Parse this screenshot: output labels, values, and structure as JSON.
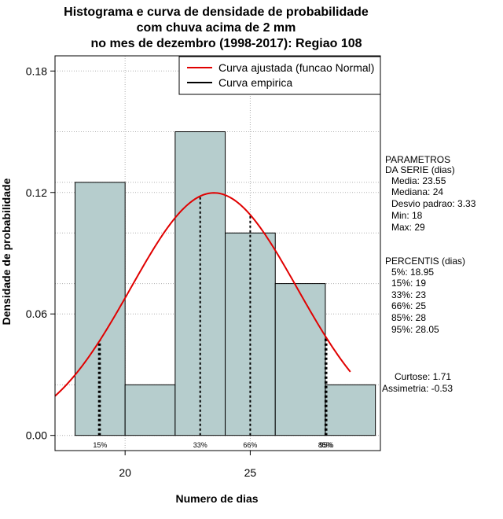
{
  "chart_data": {
    "type": "bar",
    "title_lines": [
      "Histograma e curva de densidade de probabilidade",
      "com chuva acima de 2 mm",
      "no mes de dezembro (1998-2017): Regiao 108"
    ],
    "xlabel": "Numero de dias",
    "ylabel": "Densidade de probabilidade",
    "xlim": [
      17.2,
      30.2
    ],
    "ylim": [
      -0.0075,
      0.1875
    ],
    "x_ticks": [
      20,
      25
    ],
    "y_ticks": [
      0.0,
      0.06,
      0.12,
      0.18
    ],
    "y_tick_labels": [
      "0.00",
      "0.06",
      "0.12",
      "0.18"
    ],
    "grid": true,
    "bins": [
      {
        "x0": 18,
        "x1": 20,
        "density": 0.125
      },
      {
        "x0": 20,
        "x1": 22,
        "density": 0.025
      },
      {
        "x0": 22,
        "x1": 24,
        "density": 0.15
      },
      {
        "x0": 24,
        "x1": 26,
        "density": 0.1
      },
      {
        "x0": 26,
        "x1": 28,
        "density": 0.075
      },
      {
        "x0": 28,
        "x1": 30,
        "density": 0.025
      }
    ],
    "bar_color": "#b6cdcd",
    "normal_curve": {
      "mean": 23.55,
      "sd": 3.33,
      "x_from": 17.2,
      "x_to": 29.0,
      "color": "#e00000",
      "name": "Curva ajustada (funcao Normal)"
    },
    "empirical_curve": {
      "name": "Curva empirica",
      "color": "#000000"
    },
    "percentiles": [
      {
        "x": 18.95,
        "label": ""
      },
      {
        "x": 19,
        "label": "15%"
      },
      {
        "x": 23,
        "label": "33%"
      },
      {
        "x": 25,
        "label": "66%"
      },
      {
        "x": 28,
        "label": "85%"
      },
      {
        "x": 28.05,
        "label": "95%"
      }
    ],
    "legend_position": "top-right"
  },
  "side_panel": {
    "parametros": [
      "PARAMETROS",
      "DA SERIE (dias)",
      "Media: 23.55",
      "Mediana: 24",
      "Desvio padrao: 3.33",
      "Min: 18",
      "Max: 29"
    ],
    "percentis": [
      "PERCENTIS (dias)",
      "5%: 18.95",
      "15%: 19",
      "33%: 23",
      "66%: 25",
      "85%: 28",
      "95%: 28.05"
    ],
    "stats": [
      "Curtose: 1.71",
      "Assimetria: -0.53"
    ]
  }
}
